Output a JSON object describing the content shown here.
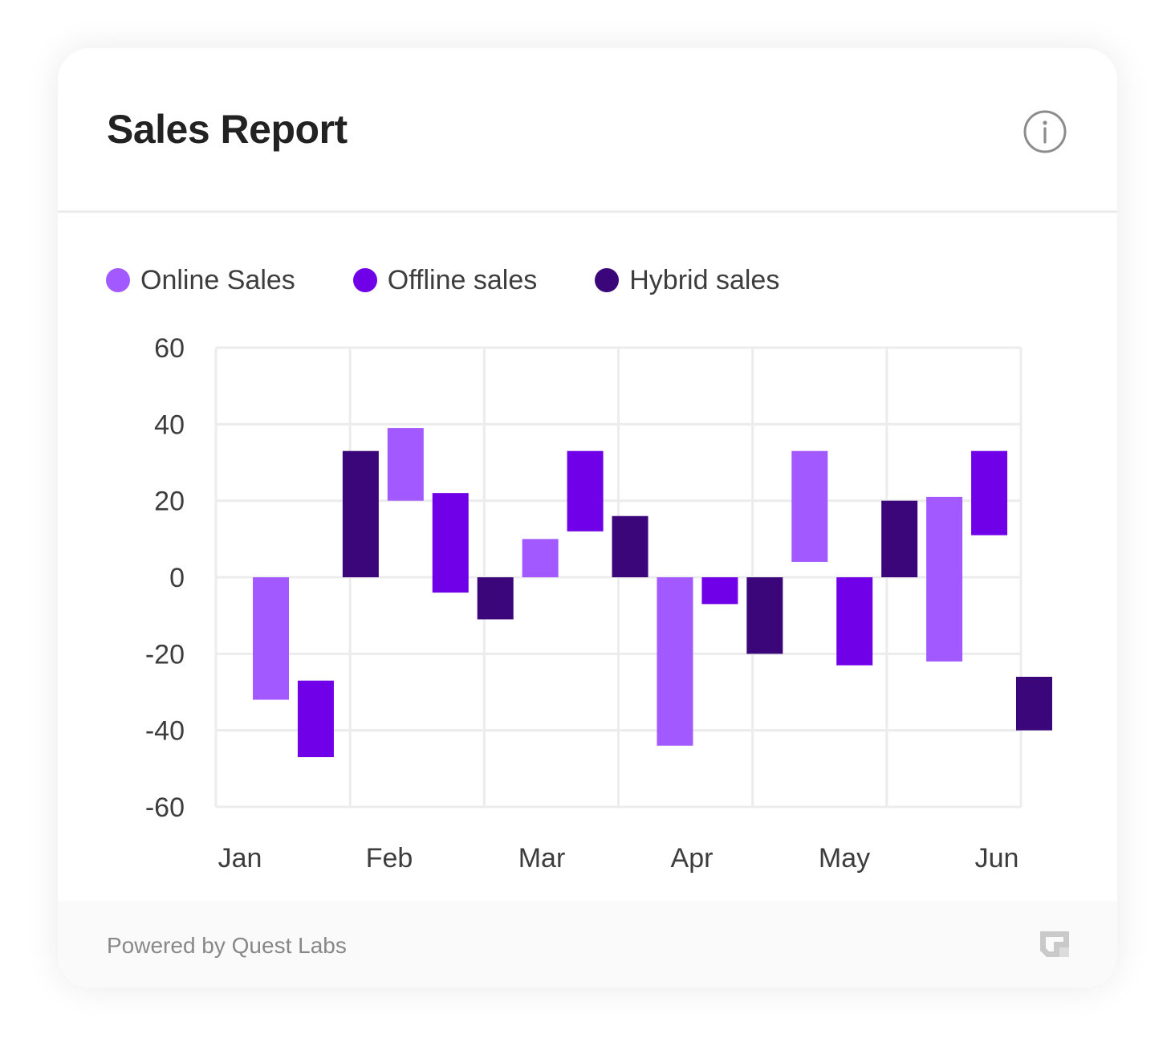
{
  "card": {
    "title": "Sales Report",
    "info_icon": "info-circle-icon",
    "footer_text": "Powered by Quest Labs",
    "footer_logo": "quest-labs-logo-icon"
  },
  "colors": {
    "online": "#a259ff",
    "offline": "#7000e8",
    "hybrid": "#3b0679",
    "grid": "#ececec",
    "text": "#3d3d3d"
  },
  "chart_data": {
    "type": "bar",
    "subtype": "floating-range",
    "title": "Sales Report",
    "xlabel": "",
    "ylabel": "",
    "categories": [
      "Jan",
      "Feb",
      "Mar",
      "Apr",
      "May",
      "Jun"
    ],
    "y_ticks": [
      "60",
      "40",
      "20",
      "0",
      "-20",
      "-40",
      "-60"
    ],
    "ylim": [
      -60,
      60
    ],
    "grid": true,
    "legend_position": "top-left",
    "series": [
      {
        "name": "Online Sales",
        "color": "#a259ff",
        "values": [
          [
            -32,
            0
          ],
          [
            20,
            39
          ],
          [
            0,
            10
          ],
          [
            -44,
            0
          ],
          [
            4,
            33
          ],
          [
            -22,
            21
          ]
        ]
      },
      {
        "name": "Offline sales",
        "color": "#7000e8",
        "values": [
          [
            -47,
            -27
          ],
          [
            -4,
            22
          ],
          [
            12,
            33
          ],
          [
            -7,
            0
          ],
          [
            -23,
            0
          ],
          [
            11,
            33
          ]
        ]
      },
      {
        "name": "Hybrid sales",
        "color": "#3b0679",
        "values": [
          [
            0,
            33
          ],
          [
            -11,
            0
          ],
          [
            0,
            16
          ],
          [
            -20,
            0
          ],
          [
            0,
            20
          ],
          [
            -40,
            -26
          ]
        ]
      }
    ]
  }
}
